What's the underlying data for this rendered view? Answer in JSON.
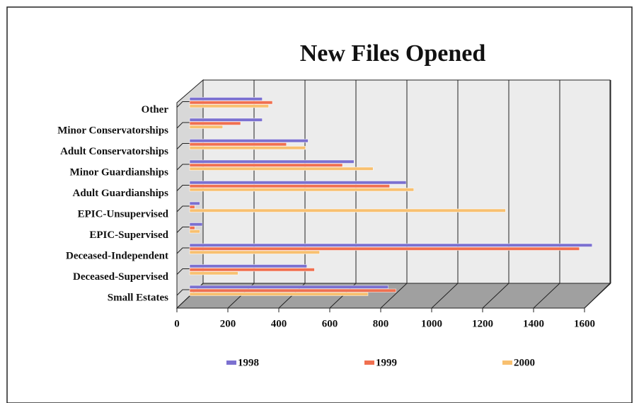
{
  "chart_data": {
    "type": "bar",
    "orientation": "horizontal",
    "title": "New Files Opened",
    "categories": [
      "Small Estates",
      "Deceased-Supervised",
      "Deceased-Independent",
      "EPIC-Supervised",
      "EPIC-Unsupervised",
      "Adult Guardianships",
      "Minor Guardianships",
      "Adult Conservatorships",
      "Minor Conservatorships",
      "Other"
    ],
    "series": [
      {
        "name": "1998",
        "color": "#7b70d0",
        "values": [
          780,
          460,
          1580,
          50,
          40,
          850,
          645,
          465,
          285,
          285
        ]
      },
      {
        "name": "1999",
        "color": "#f07050",
        "values": [
          810,
          490,
          1530,
          20,
          20,
          785,
          600,
          380,
          200,
          325
        ]
      },
      {
        "name": "2000",
        "color": "#f8c070",
        "values": [
          700,
          190,
          510,
          40,
          1240,
          880,
          720,
          455,
          130,
          310
        ]
      }
    ],
    "xlim": [
      0,
      1600
    ],
    "xticks": [
      0,
      200,
      400,
      600,
      800,
      1000,
      1200,
      1400,
      1600
    ],
    "grid": true,
    "legend": "bottom"
  }
}
